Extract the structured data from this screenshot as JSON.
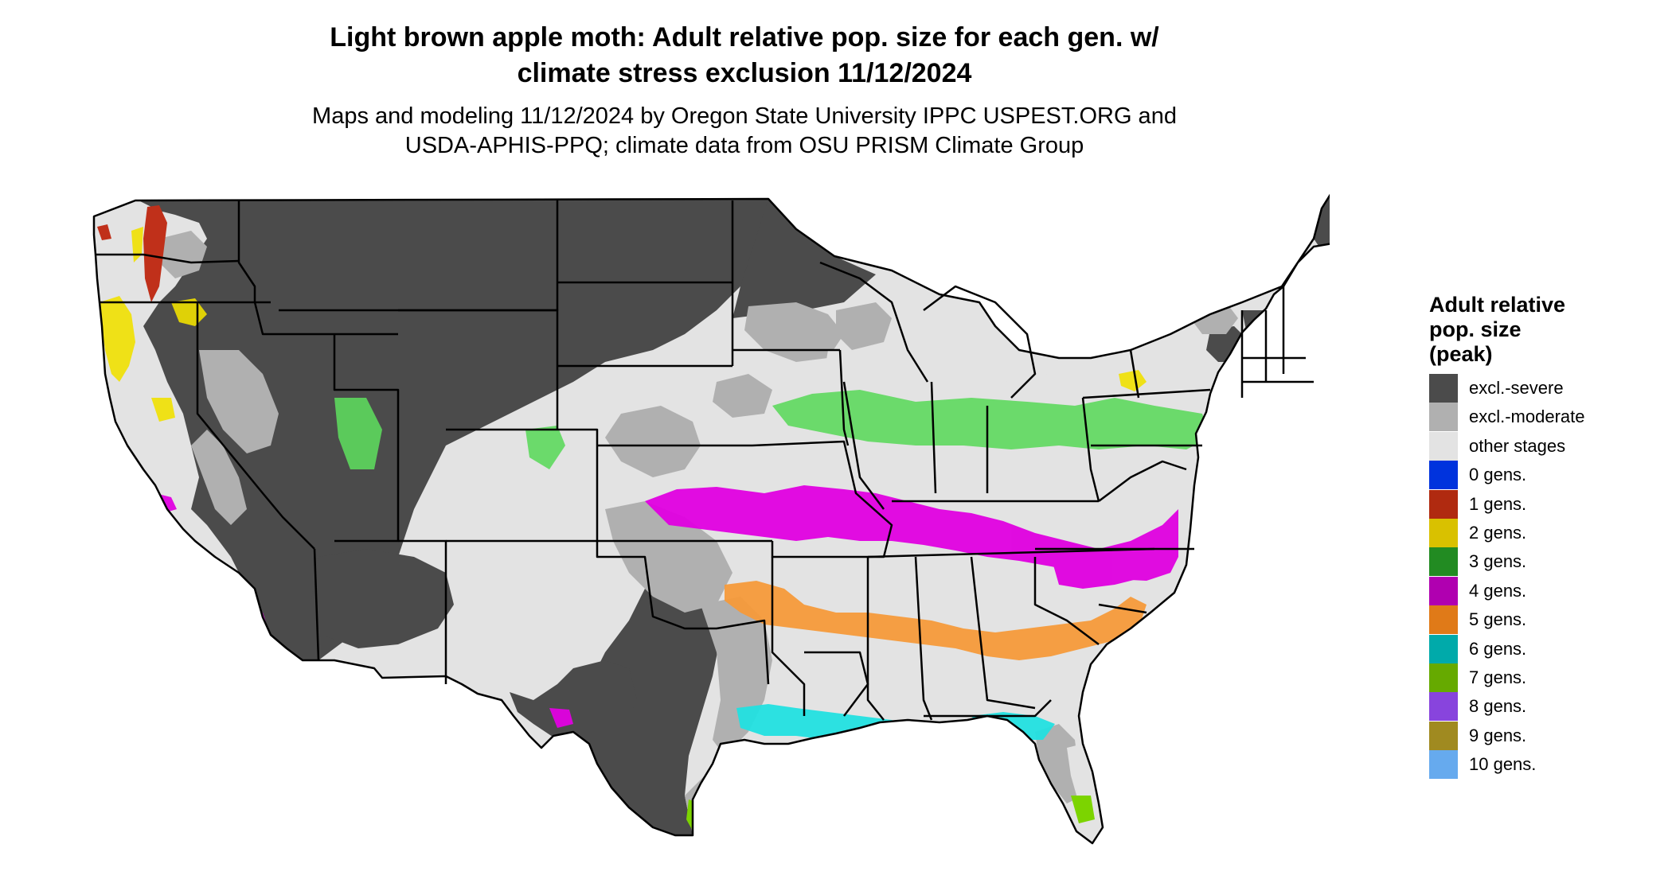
{
  "title": {
    "line1": "Light brown apple moth: Adult relative pop. size for each gen. w/",
    "line2": "climate stress exclusion 11/12/2024"
  },
  "subtitle": {
    "line1": "Maps and modeling 11/12/2024 by Oregon State University IPPC USPEST.ORG and",
    "line2": "USDA-APHIS-PPQ; climate data from OSU PRISM Climate Group"
  },
  "legend": {
    "title_line1": "Adult relative",
    "title_line2": "pop. size",
    "title_line3": "(peak)",
    "items": [
      {
        "label": "excl.-severe",
        "color": "#4b4b4b"
      },
      {
        "label": "excl.-moderate",
        "color": "#b0b0b0"
      },
      {
        "label": "other stages",
        "color": "#e3e3e3"
      },
      {
        "label": "0 gens.",
        "color": "#0033dd"
      },
      {
        "label": "1 gens.",
        "color": "#b02a10"
      },
      {
        "label": "2 gens.",
        "color": "#d9c100"
      },
      {
        "label": "3 gens.",
        "color": "#228b22"
      },
      {
        "label": "4 gens.",
        "color": "#b000b0"
      },
      {
        "label": "5 gens.",
        "color": "#e07a18"
      },
      {
        "label": "6 gens.",
        "color": "#00aaaa"
      },
      {
        "label": "7 gens.",
        "color": "#66aa00"
      },
      {
        "label": "8 gens.",
        "color": "#8844dd"
      },
      {
        "label": "9 gens.",
        "color": "#a08a20"
      },
      {
        "label": "10 gens.",
        "color": "#66aaee"
      }
    ]
  },
  "map": {
    "colors": {
      "severe": "#4b4b4b",
      "moderate": "#b0b0b0",
      "other": "#e3e3e3",
      "gen1": "#c0301a",
      "gen2": "#f0e000",
      "gen3": "#5dd85d",
      "gen4": "#e000e0",
      "gen5": "#f59a3a",
      "gen6": "#22e0e0",
      "gen7": "#7cd400",
      "gen8": "#9966ee",
      "border": "#000000"
    }
  }
}
